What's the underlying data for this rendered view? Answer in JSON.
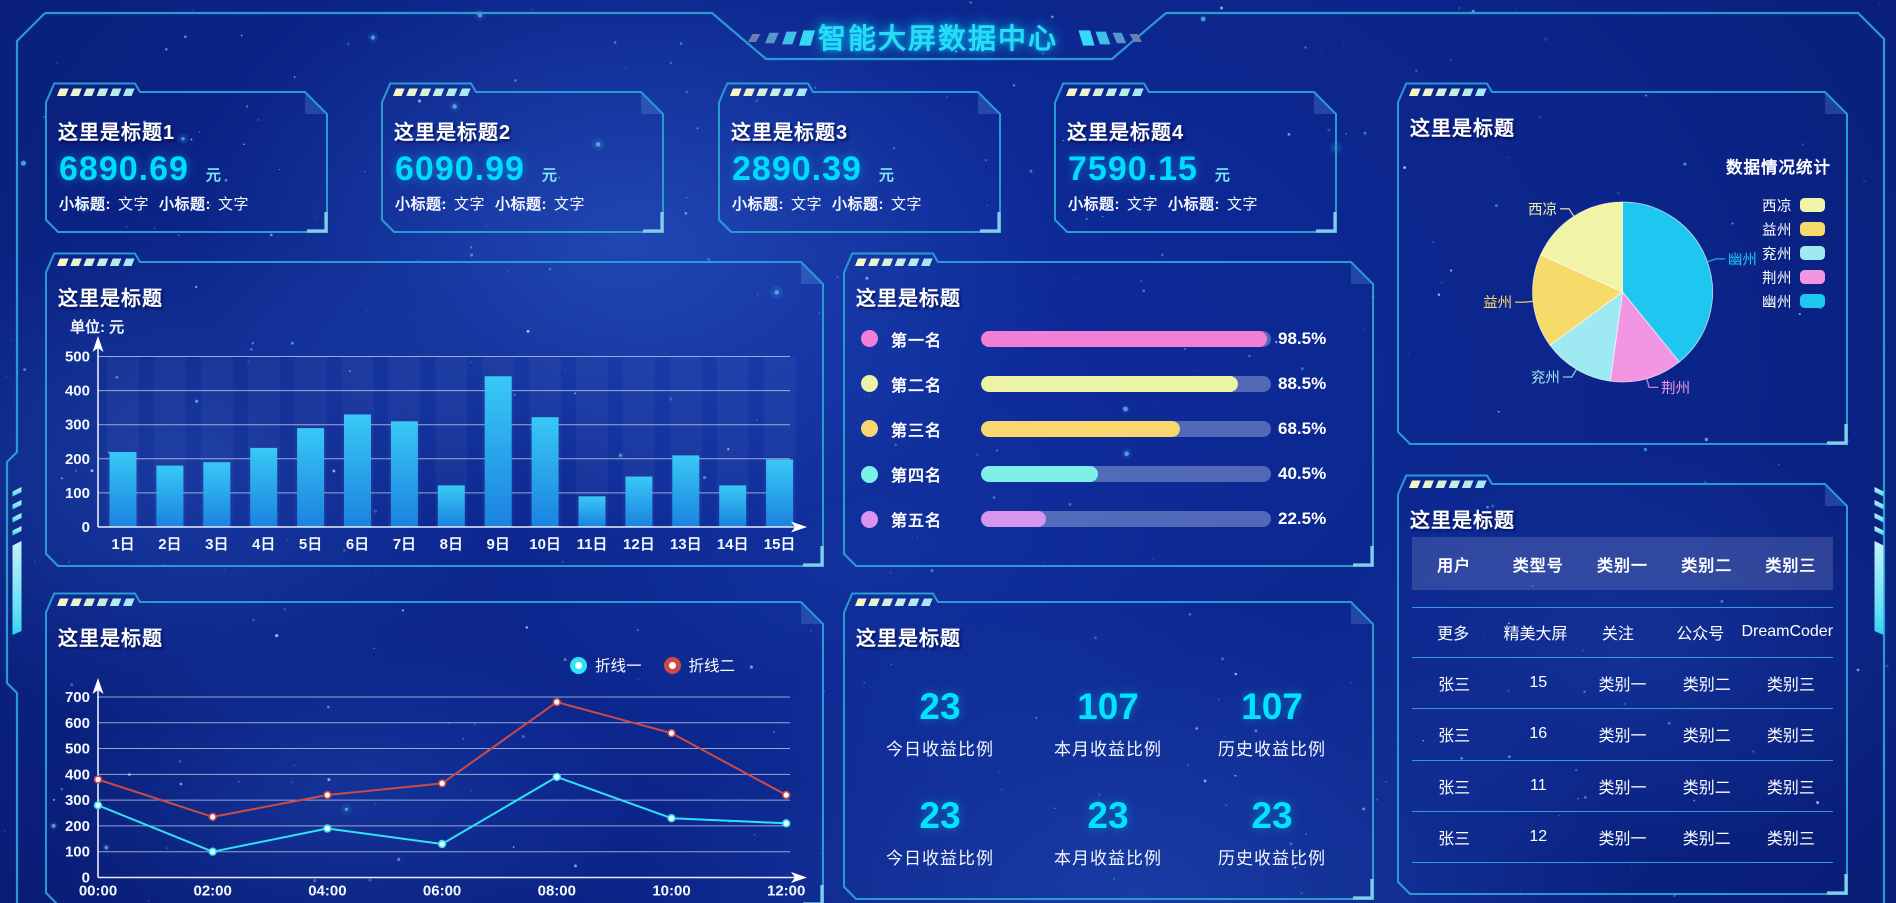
{
  "header": {
    "title": "智能大屏数据中心"
  },
  "colors": {
    "background": "#0B2488",
    "panel_border": "#2A9AD2",
    "corner_bracket": "#85CDEA",
    "title_cyan": "#28DCF7",
    "value_cyan": "#00DCFF",
    "text_white": "#FFFFFF",
    "bar_gradient_top": "#38C9F6",
    "bar_gradient_bottom": "#1B82E0",
    "tab_slash_start": "#F7F7C4",
    "tab_slash_end": "#A6E8F6"
  },
  "cards": [
    {
      "title": "这里是标题1",
      "value": "6890.69",
      "unit": "元",
      "subs": [
        {
          "label": "小标题:",
          "text": "文字"
        },
        {
          "label": "小标题:",
          "text": "文字"
        }
      ]
    },
    {
      "title": "这里是标题2",
      "value": "6090.99",
      "unit": "元",
      "subs": [
        {
          "label": "小标题:",
          "text": "文字"
        },
        {
          "label": "小标题:",
          "text": "文字"
        }
      ]
    },
    {
      "title": "这里是标题3",
      "value": "2890.39",
      "unit": "元",
      "subs": [
        {
          "label": "小标题:",
          "text": "文字"
        },
        {
          "label": "小标题:",
          "text": "文字"
        }
      ]
    },
    {
      "title": "这里是标题4",
      "value": "7590.15",
      "unit": "元",
      "subs": [
        {
          "label": "小标题:",
          "text": "文字"
        },
        {
          "label": "小标题:",
          "text": "文字"
        }
      ]
    }
  ],
  "chart_data": [
    {
      "id": "daily-bar",
      "type": "bar",
      "title": "这里是标题",
      "unit_label": "单位: 元",
      "unit": "元",
      "categories": [
        "1日",
        "2日",
        "3日",
        "4日",
        "5日",
        "6日",
        "7日",
        "8日",
        "9日",
        "10日",
        "11日",
        "12日",
        "13日",
        "14日",
        "15日"
      ],
      "values": [
        220,
        180,
        190,
        232,
        290,
        330,
        310,
        122,
        442,
        322,
        90,
        148,
        210,
        122,
        198
      ],
      "xlabel": "",
      "ylabel": "",
      "ylim": [
        0,
        500
      ],
      "ytick_interval": 100,
      "grid": true
    },
    {
      "id": "rank-progress",
      "type": "bar",
      "orientation": "horizontal",
      "title": "这里是标题",
      "categories": [
        "第一名",
        "第二名",
        "第三名",
        "第四名",
        "第五名"
      ],
      "values": [
        98.5,
        88.5,
        68.5,
        40.5,
        22.5
      ],
      "value_labels": [
        "98.5%",
        "88.5%",
        "68.5%",
        "40.5%",
        "22.5%"
      ],
      "colors": [
        "#F07FD5",
        "#EAF3A6",
        "#F8D76E",
        "#7DF0E8",
        "#D795EF"
      ],
      "xlim": [
        0,
        100
      ],
      "track_color": "rgba(193,209,238,0.38)"
    },
    {
      "id": "region-pie",
      "type": "pie",
      "title": "这里是标题",
      "legend_title": "数据情况统计",
      "legend_position": "right",
      "labels": [
        "西凉",
        "益州",
        "兖州",
        "荆州",
        "幽州"
      ],
      "values": [
        335,
        310,
        234,
        240,
        720
      ],
      "colors": [
        "#F1F3A6",
        "#F6DA6A",
        "#9FE9F2",
        "#F295E3",
        "#1FC7F0"
      ]
    },
    {
      "id": "trend-line",
      "type": "line",
      "title": "这里是标题",
      "x": [
        "00:00",
        "02:00",
        "04:00",
        "06:00",
        "08:00",
        "10:00",
        "12:00"
      ],
      "series": [
        {
          "name": "折线一",
          "color": "#2FE2F5",
          "values": [
            280,
            100,
            190,
            130,
            390,
            230,
            210
          ]
        },
        {
          "name": "折线二",
          "color": "#CD4A45",
          "values": [
            380,
            235,
            320,
            365,
            680,
            560,
            320
          ]
        }
      ],
      "xlabel": "",
      "ylabel": "",
      "ylim": [
        0,
        700
      ],
      "ytick_interval": 100,
      "grid": true,
      "legend_position": "top-right"
    }
  ],
  "stats_panel": {
    "title": "这里是标题",
    "items": [
      {
        "value": "23",
        "label": "今日收益比例"
      },
      {
        "value": "107",
        "label": "本月收益比例"
      },
      {
        "value": "107",
        "label": "历史收益比例"
      },
      {
        "value": "23",
        "label": "今日收益比例"
      },
      {
        "value": "23",
        "label": "本月收益比例"
      },
      {
        "value": "23",
        "label": "历史收益比例"
      }
    ]
  },
  "table_panel": {
    "title": "这里是标题",
    "columns": [
      "用户",
      "类型号",
      "类别一",
      "类别二",
      "类别三"
    ],
    "rows": [
      [
        "更多",
        "精美大屏",
        "关注",
        "公众号",
        "DreamCoder"
      ],
      [
        "张三",
        "15",
        "类别一",
        "类别二",
        "类别三"
      ],
      [
        "张三",
        "16",
        "类别一",
        "类别二",
        "类别三"
      ],
      [
        "张三",
        "11",
        "类别一",
        "类别二",
        "类别三"
      ],
      [
        "张三",
        "12",
        "类别一",
        "类别二",
        "类别三"
      ]
    ]
  }
}
